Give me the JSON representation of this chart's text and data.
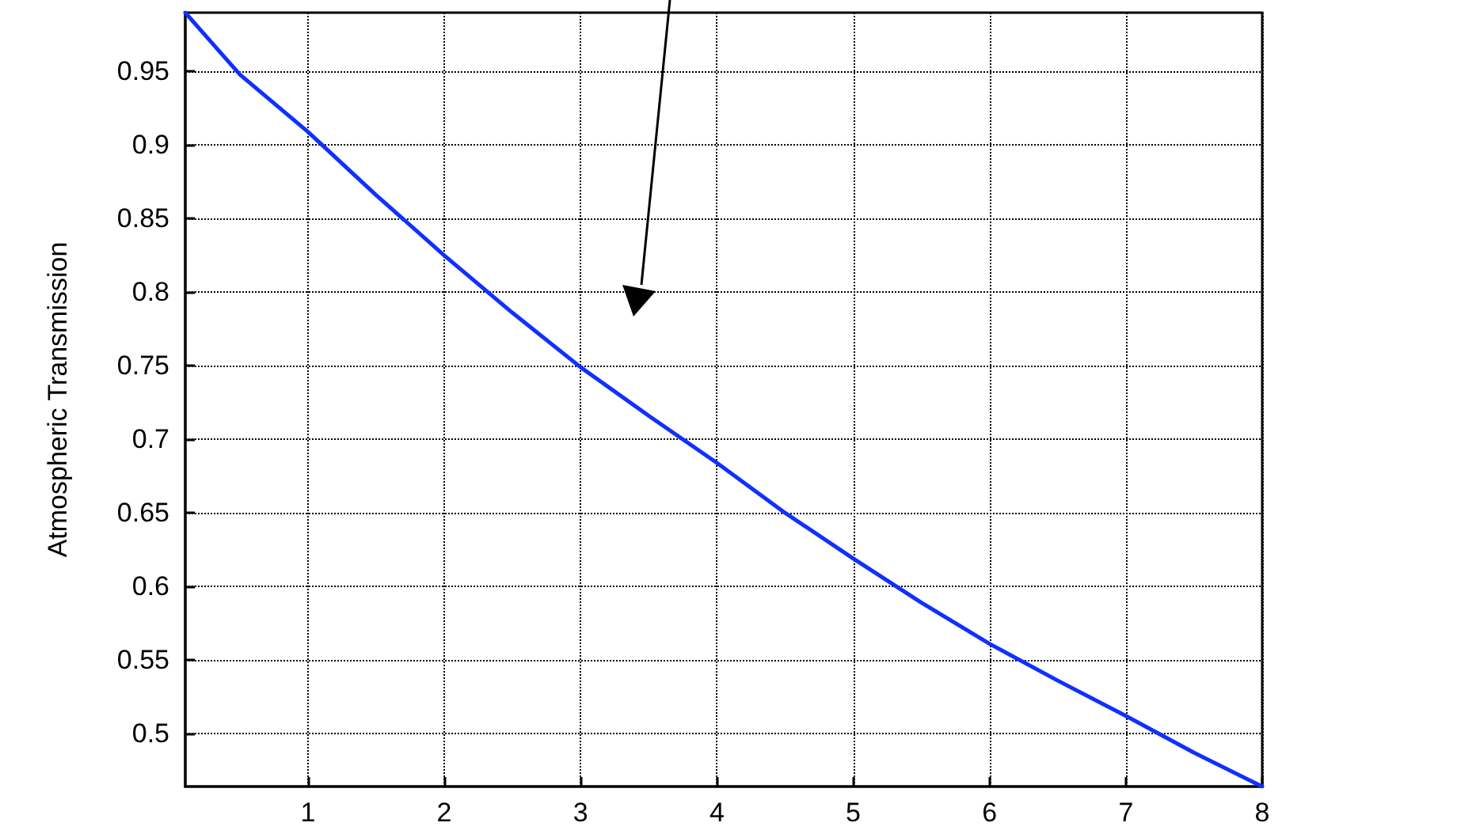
{
  "chart_data": {
    "type": "line",
    "ylabel": "Atmospheric Transmission",
    "x": [
      0.1,
      0.5,
      1,
      1.5,
      2,
      2.5,
      3,
      3.5,
      4,
      4.5,
      5,
      5.5,
      6,
      6.5,
      7,
      7.5,
      8
    ],
    "series": [
      {
        "color": "#1030ff",
        "values": [
          0.99,
          0.948,
          0.909,
          0.866,
          0.825,
          0.786,
          0.749,
          0.716,
          0.684,
          0.65,
          0.619,
          0.589,
          0.561,
          0.536,
          0.512,
          0.487,
          0.464
        ]
      }
    ],
    "xlim": [
      0.1,
      8
    ],
    "xticks": [
      1,
      2,
      3,
      4,
      5,
      6,
      7,
      8
    ],
    "ylim": [
      0.464,
      0.99
    ],
    "yticks": [
      0.5,
      0.55,
      0.6,
      0.65,
      0.7,
      0.75,
      0.8,
      0.85,
      0.9,
      0.95
    ],
    "grid": true,
    "marker": "none",
    "line_style": "solid"
  }
}
